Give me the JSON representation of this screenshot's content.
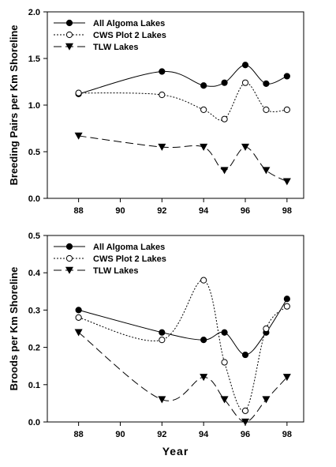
{
  "chart_data": [
    {
      "type": "line",
      "ylabel": "Breeding Pairs per Km Shoreline",
      "xlabel": "",
      "xlim": [
        86.5,
        98.8
      ],
      "ylim": [
        0,
        2.0
      ],
      "xticks": [
        "88",
        "90",
        "92",
        "94",
        "96",
        "98"
      ],
      "yticks": [
        "0.0",
        "0.5",
        "1.0",
        "1.5",
        "2.0"
      ],
      "legend_position": "top-left",
      "series": [
        {
          "name": "All Algoma Lakes",
          "marker": "filled-circle",
          "dash": "solid",
          "x": [
            88,
            92,
            94,
            95,
            96,
            97,
            98
          ],
          "y": [
            1.12,
            1.36,
            1.21,
            1.24,
            1.43,
            1.23,
            1.31
          ]
        },
        {
          "name": "CWS Plot 2 Lakes",
          "marker": "open-circle",
          "dash": "dotted",
          "x": [
            88,
            92,
            94,
            95,
            96,
            97,
            98
          ],
          "y": [
            1.13,
            1.11,
            0.95,
            0.85,
            1.24,
            0.95,
            0.95
          ]
        },
        {
          "name": "TLW Lakes",
          "marker": "filled-triangle-down",
          "dash": "dashed",
          "x": [
            88,
            92,
            94,
            95,
            96,
            97,
            98
          ],
          "y": [
            0.67,
            0.55,
            0.55,
            0.3,
            0.55,
            0.3,
            0.18
          ]
        }
      ]
    },
    {
      "type": "line",
      "ylabel": "Broods per Km Shoreline",
      "xlabel": "Year",
      "xlim": [
        86.5,
        98.8
      ],
      "ylim": [
        0,
        0.5
      ],
      "xticks": [
        "88",
        "90",
        "92",
        "94",
        "96",
        "98"
      ],
      "yticks": [
        "0.0",
        "0.1",
        "0.2",
        "0.3",
        "0.4",
        "0.5"
      ],
      "legend_position": "top-left",
      "series": [
        {
          "name": "All Algoma Lakes",
          "marker": "filled-circle",
          "dash": "solid",
          "x": [
            88,
            92,
            94,
            95,
            96,
            97,
            98
          ],
          "y": [
            0.3,
            0.24,
            0.22,
            0.24,
            0.18,
            0.24,
            0.33
          ]
        },
        {
          "name": "CWS Plot 2 Lakes",
          "marker": "open-circle",
          "dash": "dotted",
          "x": [
            88,
            92,
            94,
            95,
            96,
            97,
            98
          ],
          "y": [
            0.28,
            0.22,
            0.38,
            0.16,
            0.03,
            0.25,
            0.31
          ]
        },
        {
          "name": "TLW Lakes",
          "marker": "filled-triangle-down",
          "dash": "dashed",
          "x": [
            88,
            92,
            94,
            95,
            96,
            97,
            98
          ],
          "y": [
            0.24,
            0.06,
            0.12,
            0.06,
            0.0,
            0.06,
            0.12
          ]
        }
      ]
    }
  ]
}
